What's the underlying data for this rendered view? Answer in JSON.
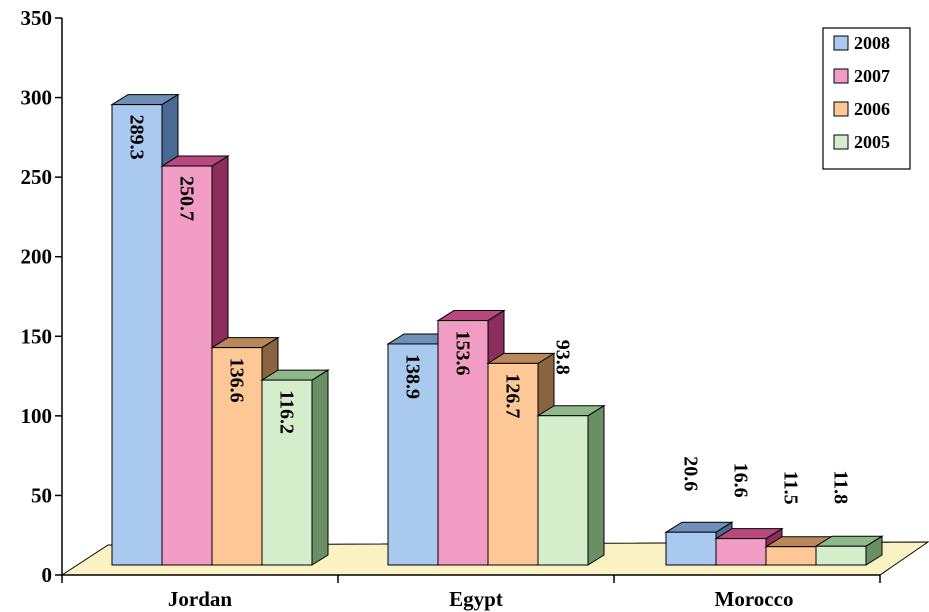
{
  "chart_data": {
    "type": "bar",
    "title": "",
    "xlabel": "",
    "ylabel": "",
    "ylim": [
      0,
      350
    ],
    "yticks": [
      0,
      50,
      100,
      150,
      200,
      250,
      300,
      350
    ],
    "categories": [
      "Jordan",
      "Egypt",
      "Morocco"
    ],
    "series": [
      {
        "name": "2008",
        "values": [
          289.3,
          138.9,
          20.6
        ],
        "labels": [
          "289.3",
          "138.9",
          "20.6"
        ]
      },
      {
        "name": "2007",
        "values": [
          250.7,
          153.6,
          16.6
        ],
        "labels": [
          "250.7",
          "153.6",
          "16.6"
        ]
      },
      {
        "name": "2006",
        "values": [
          136.6,
          126.7,
          11.5
        ],
        "labels": [
          "136.6",
          "126.7",
          "11.5"
        ]
      },
      {
        "name": "2005",
        "values": [
          116.2,
          93.8,
          11.8
        ],
        "labels": [
          "116.2",
          "93.8",
          "11.8"
        ]
      }
    ],
    "colors": {
      "2008": {
        "front": "#a9c9ee",
        "top": "#6f8fb8",
        "side": "#4a6a94"
      },
      "2007": {
        "front": "#f09cc4",
        "top": "#b8487e",
        "side": "#8a2f5c"
      },
      "2006": {
        "front": "#fdc896",
        "top": "#b8885a",
        "side": "#8a6440"
      },
      "2005": {
        "front": "#d4eecc",
        "top": "#8fb889",
        "side": "#6a8f64"
      }
    },
    "floor_color": "#fbf2c4",
    "legend_position": "top-right",
    "grid": false
  }
}
